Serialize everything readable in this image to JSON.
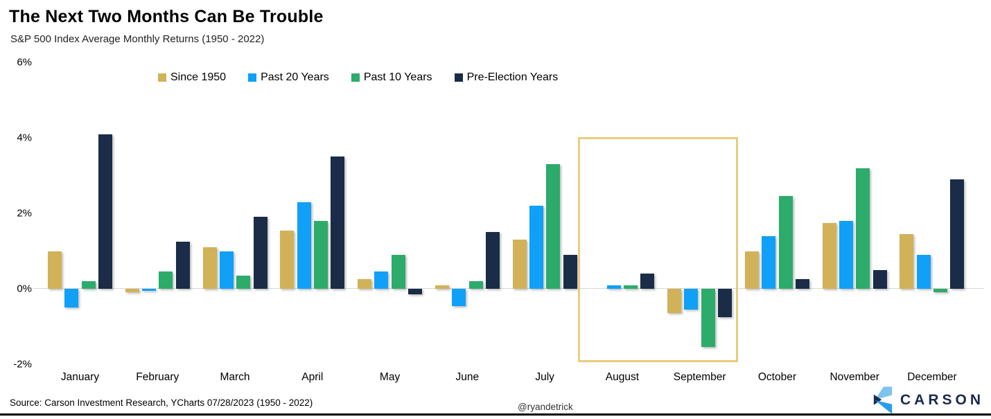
{
  "title": "The Next Two Months Can Be Trouble",
  "subtitle": "S&P 500 Index Average Monthly Returns (1950 - 2022)",
  "colors": {
    "since_1950": "#d2b258",
    "past_20_years": "#10a0f7",
    "past_10_years": "#2cab6b",
    "pre_election_years": "#1a2c47",
    "highlight_border": "#e8cc7f",
    "axis_line": "#d8d8d8",
    "brand_navy": "#1b2b4d",
    "brand_light_blue": "#7fc3f1",
    "brand_mid_blue": "#2a9de8"
  },
  "chart_data": {
    "type": "bar",
    "title": "The Next Two Months Can Be Trouble",
    "subtitle": "S&P 500 Index Average Monthly Returns (1950 - 2022)",
    "xlabel": "",
    "ylabel": "",
    "ylim": [
      -2.4,
      6.3
    ],
    "grid": false,
    "legend_position": "top",
    "y_ticks": [
      {
        "label": "6%",
        "value": 6
      },
      {
        "label": "4%",
        "value": 4
      },
      {
        "label": "2%",
        "value": 2
      },
      {
        "label": "0%",
        "value": 0
      },
      {
        "label": "-2%",
        "value": -2
      }
    ],
    "categories": [
      "January",
      "February",
      "March",
      "April",
      "May",
      "June",
      "July",
      "August",
      "September",
      "October",
      "November",
      "December"
    ],
    "series": [
      {
        "name": "Since 1950",
        "color": "#d2b258",
        "values": [
          1.0,
          -0.1,
          1.1,
          1.55,
          0.25,
          0.1,
          1.3,
          0.0,
          -0.65,
          1.0,
          1.75,
          1.45
        ]
      },
      {
        "name": "Past 20 Years",
        "color": "#10a0f7",
        "values": [
          -0.5,
          -0.05,
          1.0,
          2.3,
          0.45,
          -0.45,
          2.2,
          0.1,
          -0.55,
          1.4,
          1.8,
          0.9
        ]
      },
      {
        "name": "Past 10 Years",
        "color": "#2cab6b",
        "values": [
          0.2,
          0.45,
          0.35,
          1.8,
          0.9,
          0.2,
          3.3,
          0.1,
          -1.55,
          2.45,
          3.2,
          -0.1
        ]
      },
      {
        "name": "Pre-Election Years",
        "color": "#1a2c47",
        "values": [
          4.1,
          1.25,
          1.9,
          3.5,
          -0.15,
          1.5,
          0.9,
          0.4,
          -0.75,
          0.25,
          0.5,
          2.9
        ]
      }
    ],
    "annotations": [
      {
        "type": "highlight-box",
        "months": [
          "August",
          "September"
        ],
        "border_color": "#e8cc7f"
      }
    ]
  },
  "legend": [
    {
      "label": "Since 1950",
      "color": "#d2b258"
    },
    {
      "label": "Past 20 Years",
      "color": "#10a0f7"
    },
    {
      "label": "Past 10 Years",
      "color": "#2cab6b"
    },
    {
      "label": "Pre-Election Years",
      "color": "#1a2c47"
    }
  ],
  "footer": {
    "source": "Source: Carson Investment Research, YCharts 07/28/2023 (1950 - 2022)",
    "watermark": "@ryandetrick",
    "brand": "CARSON"
  }
}
